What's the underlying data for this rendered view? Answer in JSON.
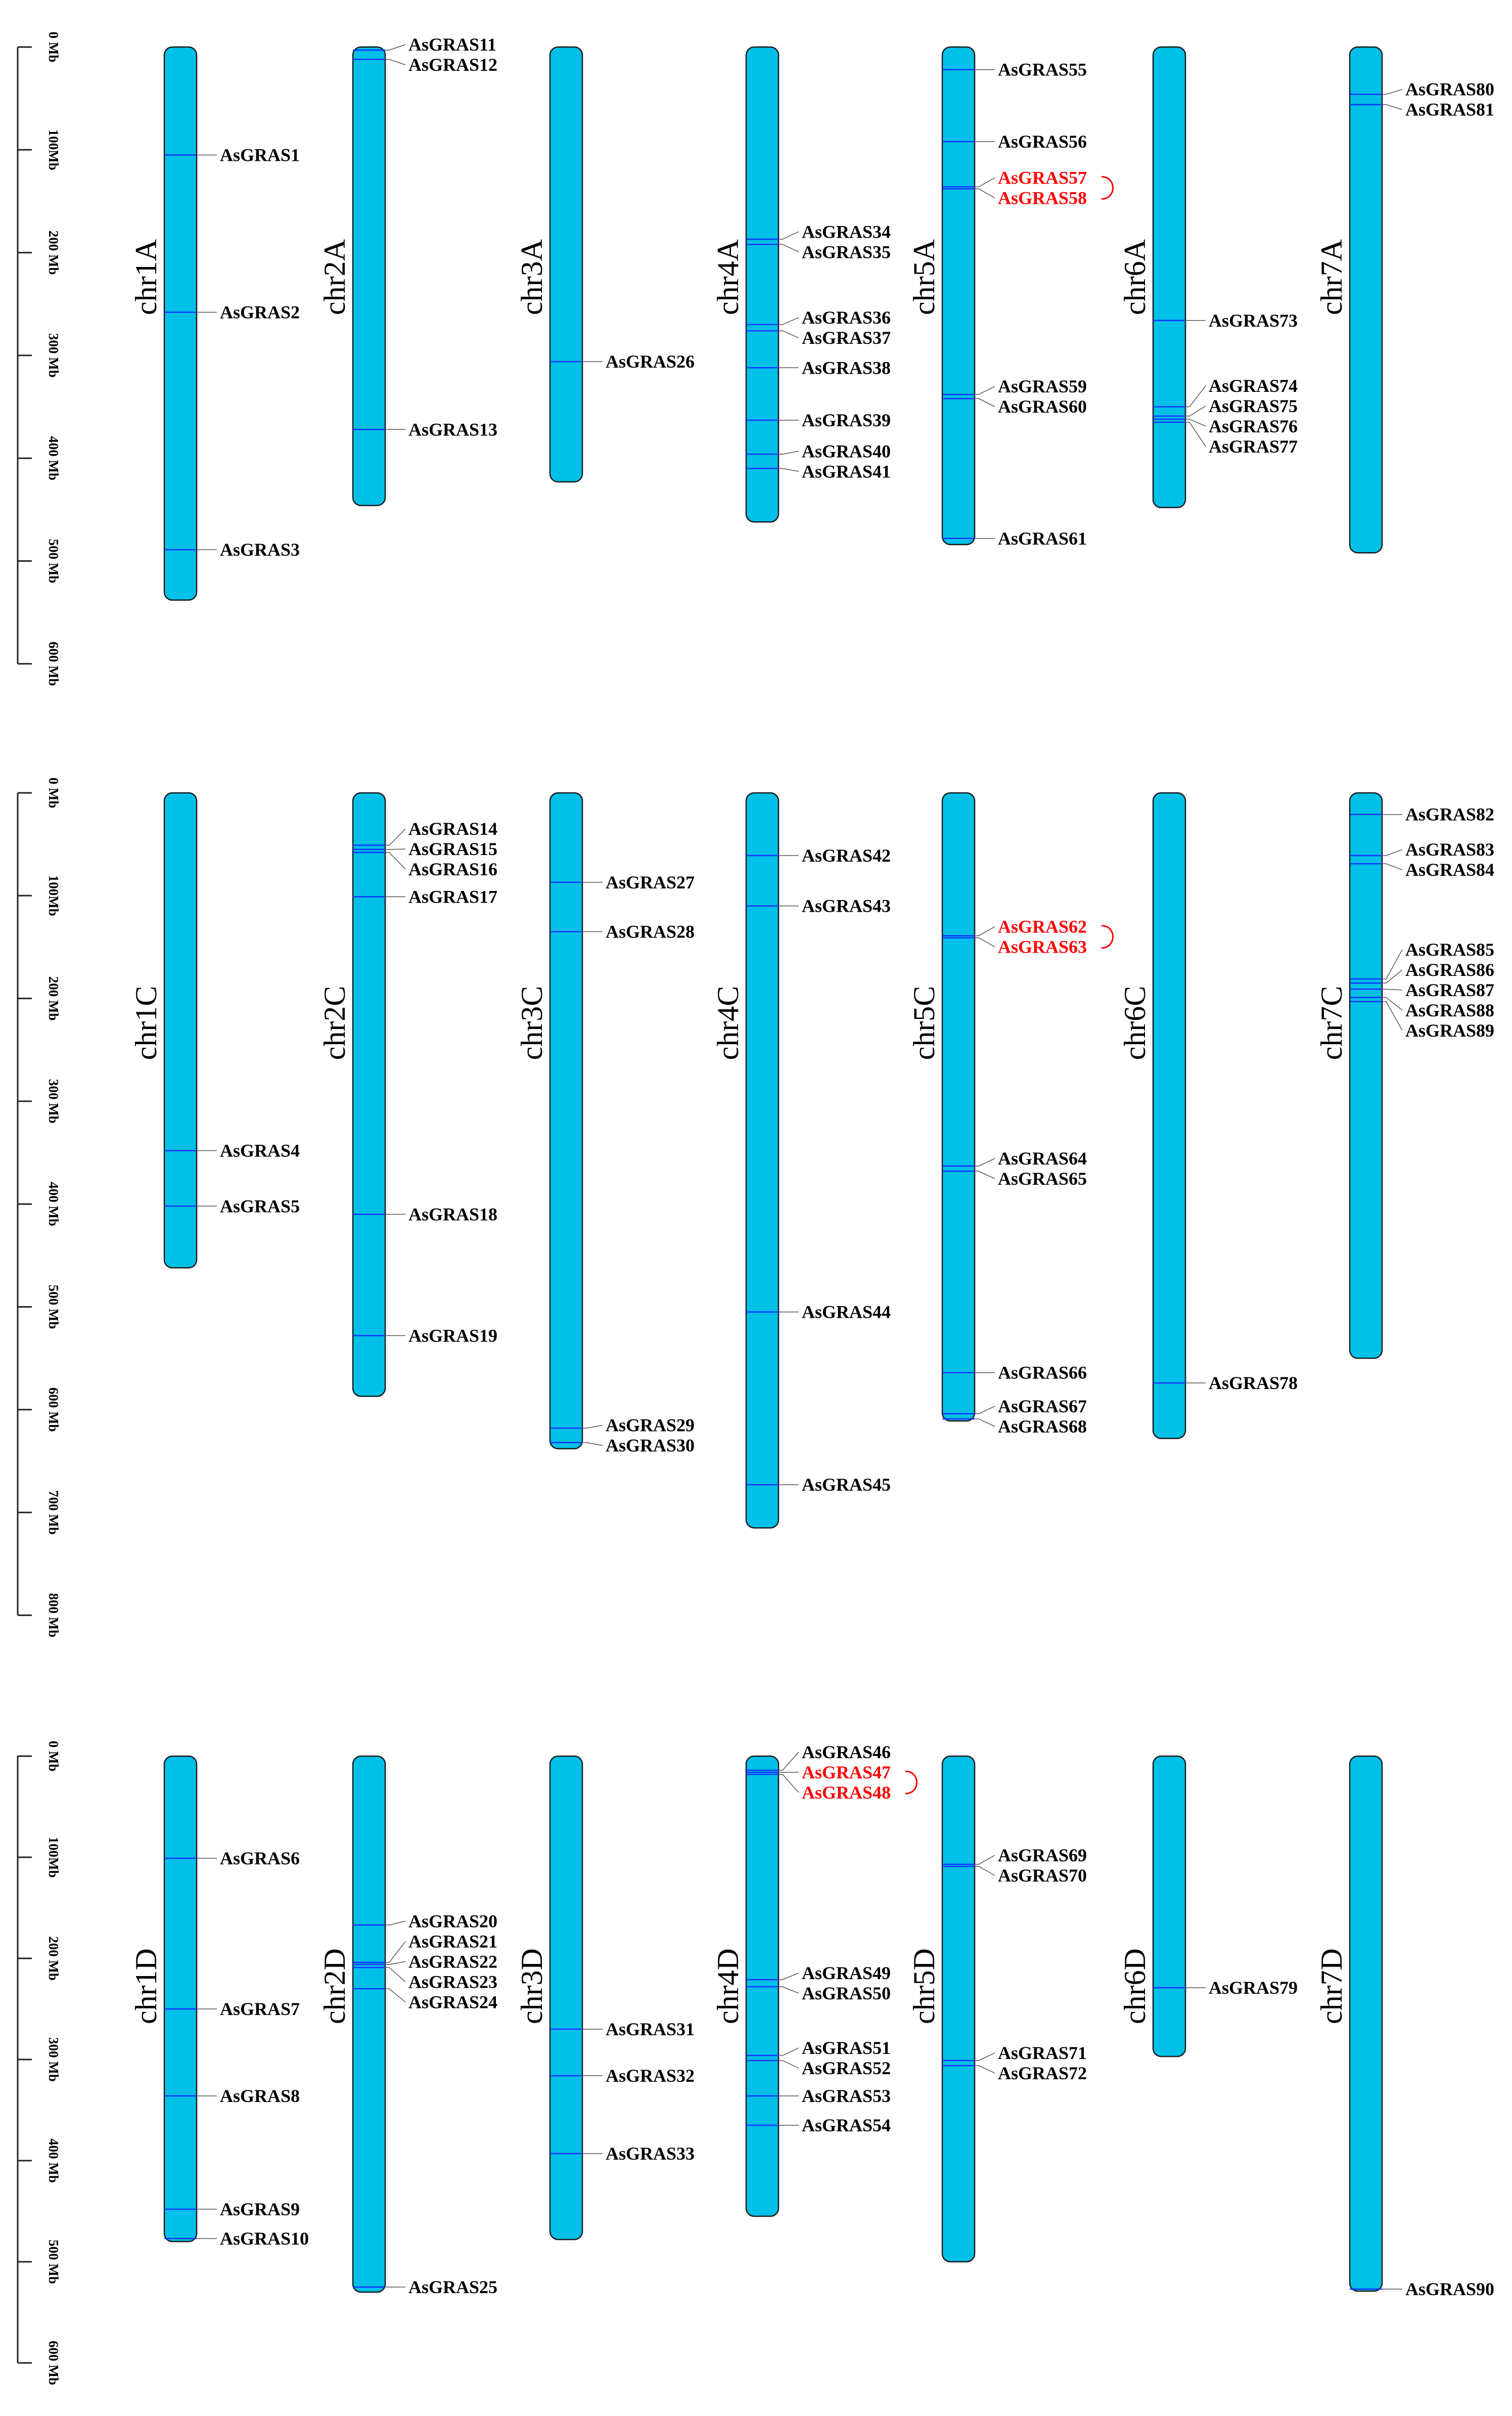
{
  "colors": {
    "chromosome_fill": "#00C0E8",
    "chromosome_stroke": "#1a1a1a",
    "gene_line": "#1433ff",
    "label_default": "#000000",
    "label_highlight": "#ff0000"
  },
  "panels": [
    {
      "id": "A",
      "scale": {
        "max": 600,
        "step": 100,
        "tick_labels": [
          "0 Mb",
          "100Mb",
          "200 Mb",
          "300 Mb",
          "400 Mb",
          "500 Mb",
          "600 Mb"
        ]
      },
      "chromosomes": [
        {
          "name": "chr1A",
          "length": 538,
          "genes": [
            {
              "label": "AsGRAS1",
              "pos": 105
            },
            {
              "label": "AsGRAS2",
              "pos": 258
            },
            {
              "label": "AsGRAS3",
              "pos": 489
            }
          ]
        },
        {
          "name": "chr2A",
          "length": 446,
          "genes": [
            {
              "label": "AsGRAS11",
              "pos": 3
            },
            {
              "label": "AsGRAS12",
              "pos": 12
            },
            {
              "label": "AsGRAS13",
              "pos": 372
            }
          ]
        },
        {
          "name": "chr3A",
          "length": 423,
          "genes": [
            {
              "label": "AsGRAS26",
              "pos": 306
            }
          ]
        },
        {
          "name": "chr4A",
          "length": 462,
          "genes": [
            {
              "label": "AsGRAS34",
              "pos": 187
            },
            {
              "label": "AsGRAS35",
              "pos": 192
            },
            {
              "label": "AsGRAS36",
              "pos": 270
            },
            {
              "label": "AsGRAS37",
              "pos": 276
            },
            {
              "label": "AsGRAS38",
              "pos": 312
            },
            {
              "label": "AsGRAS39",
              "pos": 363
            },
            {
              "label": "AsGRAS40",
              "pos": 396
            },
            {
              "label": "AsGRAS41",
              "pos": 410
            }
          ]
        },
        {
          "name": "chr5A",
          "length": 484,
          "genes": [
            {
              "label": "AsGRAS55",
              "pos": 22
            },
            {
              "label": "AsGRAS56",
              "pos": 92
            },
            {
              "label": "AsGRAS57",
              "pos": 136,
              "highlight": true
            },
            {
              "label": "AsGRAS58",
              "pos": 138,
              "highlight": true
            },
            {
              "label": "AsGRAS59",
              "pos": 338
            },
            {
              "label": "AsGRAS60",
              "pos": 342
            },
            {
              "label": "AsGRAS61",
              "pos": 478
            }
          ]
        },
        {
          "name": "chr6A",
          "length": 448,
          "genes": [
            {
              "label": "AsGRAS73",
              "pos": 266
            },
            {
              "label": "AsGRAS74",
              "pos": 350
            },
            {
              "label": "AsGRAS75",
              "pos": 359
            },
            {
              "label": "AsGRAS76",
              "pos": 362
            },
            {
              "label": "AsGRAS77",
              "pos": 365
            }
          ]
        },
        {
          "name": "chr7A",
          "length": 492,
          "genes": [
            {
              "label": "AsGRAS80",
              "pos": 46
            },
            {
              "label": "AsGRAS81",
              "pos": 56
            }
          ]
        }
      ]
    },
    {
      "id": "C",
      "scale": {
        "max": 800,
        "step": 100,
        "tick_labels": [
          "0 Mb",
          "100Mb",
          "200 Mb",
          "300 Mb",
          "400 Mb",
          "500 Mb",
          "600 Mb",
          "700 Mb",
          "800 Mb"
        ]
      },
      "chromosomes": [
        {
          "name": "chr1C",
          "length": 462,
          "genes": [
            {
              "label": "AsGRAS4",
              "pos": 348
            },
            {
              "label": "AsGRAS5",
              "pos": 402
            }
          ]
        },
        {
          "name": "chr2C",
          "length": 587,
          "genes": [
            {
              "label": "AsGRAS14",
              "pos": 51
            },
            {
              "label": "AsGRAS15",
              "pos": 55
            },
            {
              "label": "AsGRAS16",
              "pos": 58
            },
            {
              "label": "AsGRAS17",
              "pos": 101
            },
            {
              "label": "AsGRAS18",
              "pos": 410
            },
            {
              "label": "AsGRAS19",
              "pos": 528
            }
          ]
        },
        {
          "name": "chr3C",
          "length": 638,
          "genes": [
            {
              "label": "AsGRAS27",
              "pos": 87
            },
            {
              "label": "AsGRAS28",
              "pos": 135
            },
            {
              "label": "AsGRAS29",
              "pos": 618
            },
            {
              "label": "AsGRAS30",
              "pos": 632
            }
          ]
        },
        {
          "name": "chr4C",
          "length": 715,
          "genes": [
            {
              "label": "AsGRAS42",
              "pos": 61
            },
            {
              "label": "AsGRAS43",
              "pos": 110
            },
            {
              "label": "AsGRAS44",
              "pos": 505
            },
            {
              "label": "AsGRAS45",
              "pos": 673
            }
          ]
        },
        {
          "name": "chr5C",
          "length": 611,
          "genes": [
            {
              "label": "AsGRAS62",
              "pos": 139,
              "highlight": true
            },
            {
              "label": "AsGRAS63",
              "pos": 141,
              "highlight": true
            },
            {
              "label": "AsGRAS64",
              "pos": 363
            },
            {
              "label": "AsGRAS65",
              "pos": 368
            },
            {
              "label": "AsGRAS66",
              "pos": 564
            },
            {
              "label": "AsGRAS67",
              "pos": 604
            },
            {
              "label": "AsGRAS68",
              "pos": 609
            }
          ]
        },
        {
          "name": "chr6C",
          "length": 628,
          "genes": [
            {
              "label": "AsGRAS78",
              "pos": 574
            }
          ]
        },
        {
          "name": "chr7C",
          "length": 550,
          "genes": [
            {
              "label": "AsGRAS82",
              "pos": 21
            },
            {
              "label": "AsGRAS83",
              "pos": 61
            },
            {
              "label": "AsGRAS84",
              "pos": 69
            },
            {
              "label": "AsGRAS85",
              "pos": 181
            },
            {
              "label": "AsGRAS86",
              "pos": 185
            },
            {
              "label": "AsGRAS87",
              "pos": 191
            },
            {
              "label": "AsGRAS88",
              "pos": 199
            },
            {
              "label": "AsGRAS89",
              "pos": 203
            }
          ]
        }
      ]
    },
    {
      "id": "D",
      "scale": {
        "max": 600,
        "step": 100,
        "tick_labels": [
          "0 Mb",
          "100Mb",
          "200 Mb",
          "300 Mb",
          "400 Mb",
          "500 Mb",
          "600 Mb"
        ]
      },
      "chromosomes": [
        {
          "name": "chr1D",
          "length": 480,
          "genes": [
            {
              "label": "AsGRAS6",
              "pos": 101
            },
            {
              "label": "AsGRAS7",
              "pos": 250
            },
            {
              "label": "AsGRAS8",
              "pos": 336
            },
            {
              "label": "AsGRAS9",
              "pos": 448
            },
            {
              "label": "AsGRAS10",
              "pos": 477
            }
          ]
        },
        {
          "name": "chr2D",
          "length": 530,
          "genes": [
            {
              "label": "AsGRAS20",
              "pos": 167
            },
            {
              "label": "AsGRAS21",
              "pos": 204
            },
            {
              "label": "AsGRAS22",
              "pos": 206
            },
            {
              "label": "AsGRAS23",
              "pos": 209
            },
            {
              "label": "AsGRAS24",
              "pos": 230
            },
            {
              "label": "AsGRAS25",
              "pos": 525
            }
          ]
        },
        {
          "name": "chr3D",
          "length": 478,
          "genes": [
            {
              "label": "AsGRAS31",
              "pos": 270
            },
            {
              "label": "AsGRAS32",
              "pos": 316
            },
            {
              "label": "AsGRAS33",
              "pos": 393
            }
          ]
        },
        {
          "name": "chr4D",
          "length": 455,
          "genes": [
            {
              "label": "AsGRAS46",
              "pos": 14
            },
            {
              "label": "AsGRAS47",
              "pos": 16,
              "highlight": true
            },
            {
              "label": "AsGRAS48",
              "pos": 18,
              "highlight": true
            },
            {
              "label": "AsGRAS49",
              "pos": 221
            },
            {
              "label": "AsGRAS50",
              "pos": 228
            },
            {
              "label": "AsGRAS51",
              "pos": 296
            },
            {
              "label": "AsGRAS52",
              "pos": 301
            },
            {
              "label": "AsGRAS53",
              "pos": 336
            },
            {
              "label": "AsGRAS54",
              "pos": 365
            }
          ]
        },
        {
          "name": "chr5D",
          "length": 500,
          "genes": [
            {
              "label": "AsGRAS69",
              "pos": 107
            },
            {
              "label": "AsGRAS70",
              "pos": 109
            },
            {
              "label": "AsGRAS71",
              "pos": 301
            },
            {
              "label": "AsGRAS72",
              "pos": 306
            }
          ]
        },
        {
          "name": "chr6D",
          "length": 297,
          "genes": [
            {
              "label": "AsGRAS79",
              "pos": 229
            }
          ]
        },
        {
          "name": "chr7D",
          "length": 529,
          "genes": [
            {
              "label": "AsGRAS90",
              "pos": 527
            }
          ]
        }
      ]
    }
  ]
}
